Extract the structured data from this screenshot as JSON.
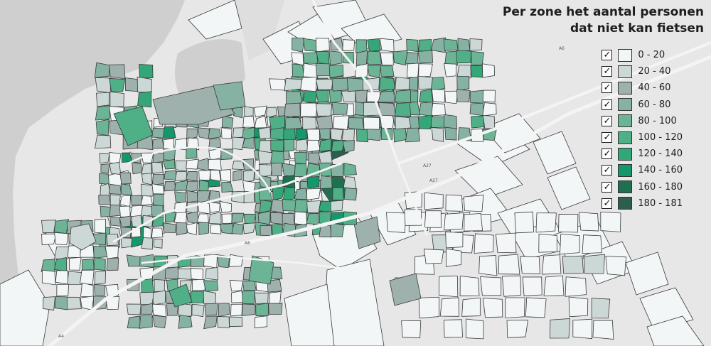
{
  "legend": {
    "title_line1": "Per zone het aantal personen",
    "title_line2": "dat niet kan fietsen",
    "check_glyph": "✓",
    "items": [
      {
        "label": "0 - 20",
        "color": "#f3f6f7",
        "checked": true
      },
      {
        "label": "20 - 40",
        "color": "#ccd8d6",
        "checked": true
      },
      {
        "label": "40 - 60",
        "color": "#9eb1ad",
        "checked": true
      },
      {
        "label": "60 - 80",
        "color": "#85b2a3",
        "checked": true
      },
      {
        "label": "80 - 100",
        "color": "#6bb596",
        "checked": true
      },
      {
        "label": "100 - 120",
        "color": "#4faf86",
        "checked": true
      },
      {
        "label": "120 - 140",
        "color": "#33a777",
        "checked": true
      },
      {
        "label": "140 - 160",
        "color": "#14976a",
        "checked": true
      },
      {
        "label": "160 - 180",
        "color": "#1f6f51",
        "checked": true
      },
      {
        "label": "180 - 181",
        "color": "#2d5e4d",
        "checked": true
      }
    ]
  },
  "road_labels": [
    "A4",
    "N",
    "A6",
    "A27",
    "A27",
    "A6"
  ],
  "colors": {
    "water": "#cfcfcf",
    "land": "#e7e7e7",
    "road": "#f4f4f4"
  }
}
